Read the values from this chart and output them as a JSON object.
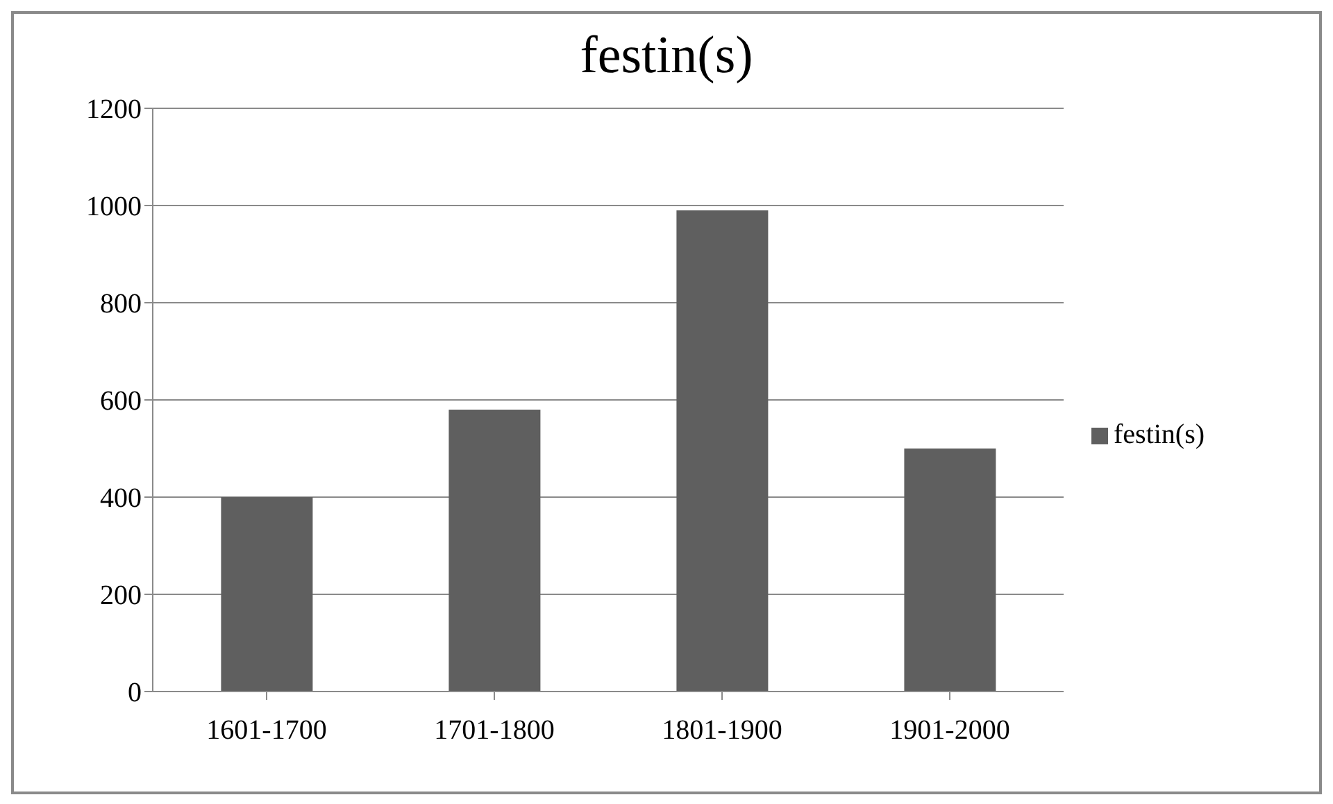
{
  "chart_data": {
    "type": "bar",
    "title": "festin(s)",
    "categories": [
      "1601-1700",
      "1701-1800",
      "1801-1900",
      "1901-2000"
    ],
    "series": [
      {
        "name": "festin(s)",
        "color": "#5f5f5f",
        "values": [
          400,
          580,
          990,
          500
        ]
      }
    ],
    "ylim": [
      0,
      1200
    ],
    "yticks": [
      0,
      200,
      400,
      600,
      800,
      1000,
      1200
    ],
    "grid": "y",
    "legend": "right"
  }
}
